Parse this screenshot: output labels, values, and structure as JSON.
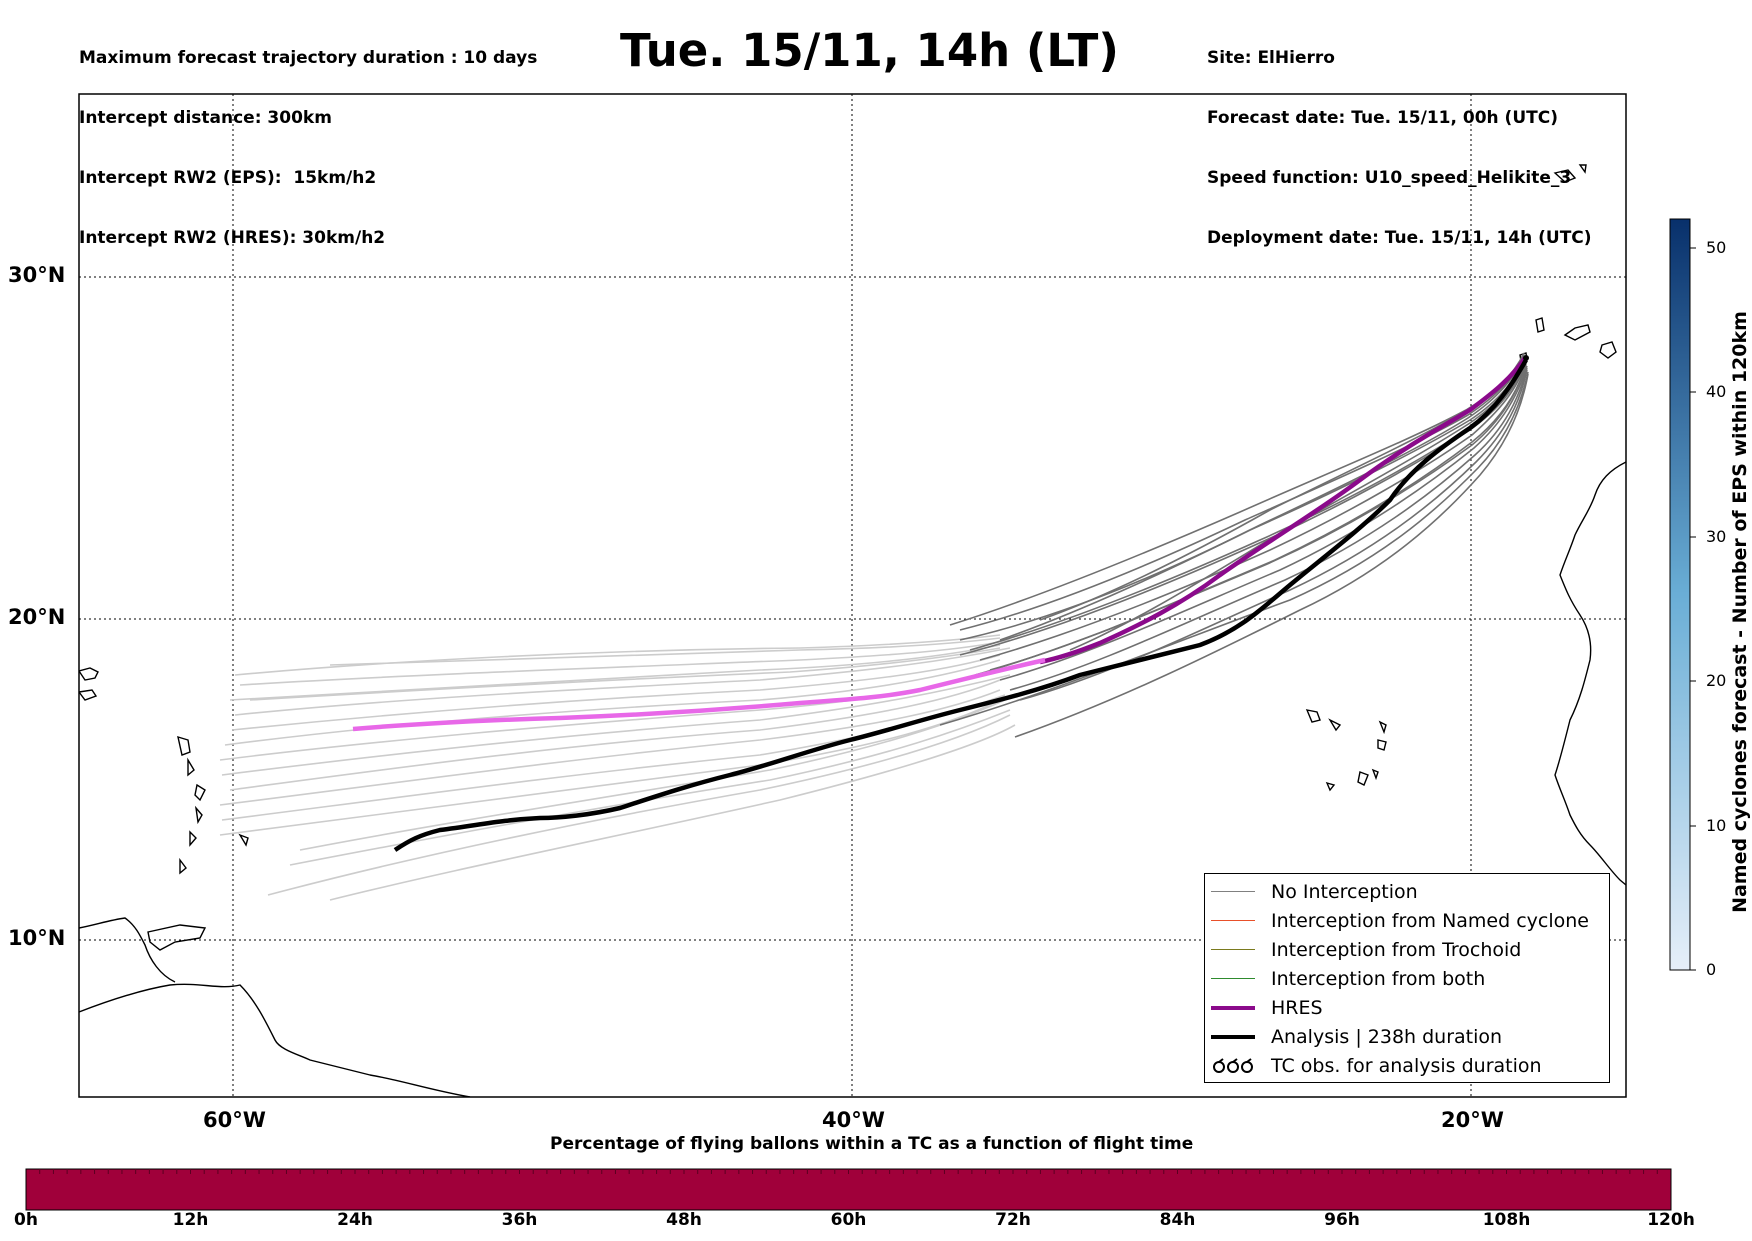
{
  "header_left": [
    "Maximum forecast trajectory duration : 10 days",
    "Intercept distance: 300km",
    "Intercept RW2 (EPS):  15km/h2",
    "Intercept RW2 (HRES): 30km/h2"
  ],
  "title": "Tue. 15/11, 14h (LT)",
  "header_right": [
    "Site: ElHierro",
    "Forecast date: Tue. 15/11, 00h (UTC)",
    "Speed function: U10_speed_Helikite_3",
    "Deployment date: Tue. 15/11, 14h (UTC)"
  ],
  "map": {
    "lat_ticks": [
      "30°N",
      "20°N",
      "10°N"
    ],
    "lon_ticks": [
      "60°W",
      "40°W",
      "20°W"
    ],
    "lon_range": [
      -65,
      -15
    ],
    "lat_range": [
      5.3,
      34.6
    ],
    "grid": "dotted",
    "launch_site": {
      "name": "ElHierro",
      "lon": -18.0,
      "lat": 27.7
    }
  },
  "legend": {
    "placement": "lower-right",
    "items": [
      {
        "label": "No Interception",
        "color": "#808080",
        "style": "thin"
      },
      {
        "label": "Interception from Named cyclone",
        "color": "#e8502a",
        "style": "thin"
      },
      {
        "label": "Interception from Trochoid",
        "color": "#7a7a1e",
        "style": "thin"
      },
      {
        "label": "Interception from both",
        "color": "#2e8b2e",
        "style": "thin"
      },
      {
        "label": "HRES",
        "color": "#8b0a8b",
        "style": "thick"
      },
      {
        "label": "Analysis | 238h duration",
        "color": "#000000",
        "style": "thick"
      },
      {
        "label": "TC obs. for analysis duration",
        "color": "#000000",
        "style": "symbol"
      }
    ]
  },
  "colorbar": {
    "label": "Named cyclones forecast - Number of EPS within 120km",
    "ticks": [
      "0",
      "10",
      "20",
      "30",
      "40",
      "50"
    ],
    "range": [
      0,
      52
    ],
    "color_low": "#e6eff9",
    "color_high": "#08306b"
  },
  "bottom_bar": {
    "title": "Percentage of flying ballons within a TC as a function of flight time",
    "ticks": [
      "0h",
      "12h",
      "24h",
      "36h",
      "48h",
      "60h",
      "72h",
      "84h",
      "96h",
      "108h",
      "120h"
    ],
    "color": "#a0003a"
  },
  "chart_data": {
    "type": "line",
    "series": [
      {
        "name": "HRES",
        "color": "#8b0a8b",
        "points": [
          [
            -18.3,
            27.0
          ],
          [
            -19.5,
            26.0
          ],
          [
            -21.0,
            25.3
          ],
          [
            -23.0,
            24.0
          ],
          [
            -25.5,
            22.6
          ],
          [
            -28.0,
            21.2
          ],
          [
            -30.5,
            19.9
          ],
          [
            -33.0,
            18.9
          ],
          [
            -36.0,
            18.2
          ],
          [
            -39.0,
            17.6
          ],
          [
            -42.0,
            17.3
          ],
          [
            -45.0,
            17.1
          ],
          [
            -48.0,
            17.0
          ],
          [
            -51.0,
            16.8
          ],
          [
            -54.0,
            16.6
          ]
        ]
      },
      {
        "name": "Analysis | 238h duration",
        "color": "#000000",
        "points": [
          [
            -18.2,
            27.1
          ],
          [
            -19.3,
            25.8
          ],
          [
            -21.0,
            24.6
          ],
          [
            -23.0,
            23.4
          ],
          [
            -25.0,
            22.0
          ],
          [
            -27.0,
            20.6
          ],
          [
            -29.0,
            19.3
          ],
          [
            -31.0,
            18.6
          ],
          [
            -33.5,
            18.2
          ],
          [
            -36.0,
            17.6
          ],
          [
            -39.0,
            16.7
          ],
          [
            -41.0,
            16.0
          ],
          [
            -43.0,
            15.5
          ],
          [
            -46.0,
            14.9
          ],
          [
            -49.0,
            14.5
          ],
          [
            -51.0,
            14.4
          ],
          [
            -52.5,
            14.2
          ],
          [
            -53.5,
            13.8
          ]
        ]
      }
    ],
    "ensemble_count": 50,
    "percentage_over_time": {
      "x": [
        0,
        12,
        24,
        36,
        48,
        60,
        72,
        84,
        96,
        108,
        120
      ],
      "y": [
        100,
        100,
        100,
        100,
        100,
        100,
        100,
        100,
        100,
        100,
        100
      ]
    }
  }
}
